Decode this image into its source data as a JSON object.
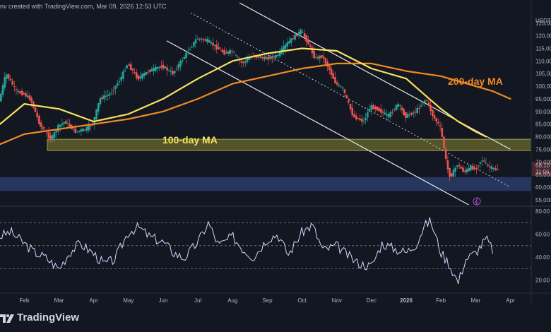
{
  "header": {
    "text": "nv created with TradingView.com, Mar 09, 2026 12:53 UTC"
  },
  "branding": {
    "logo": "TradingView"
  },
  "colors": {
    "background": "#131722",
    "up": "#26a69a",
    "down": "#ef5350",
    "ma100": "#f7e35e",
    "ma200": "#f08a24",
    "rsi": "#d1d9ff",
    "resistance_zone": "#6b6a2e",
    "support_zone": "#2d3f6e"
  },
  "chart_data": [
    {
      "type": "line",
      "title": "",
      "currency_label": "USDT",
      "y_ticks": [
        "125,000",
        "120,000",
        "115,000",
        "110,000",
        "105,000",
        "100,000",
        "95,000",
        "90,000",
        "85,000",
        "80,000",
        "75,000",
        "70,000",
        "65,000",
        "60,000",
        "55,000"
      ],
      "y_tick_values": [
        125000,
        120000,
        115000,
        110000,
        105000,
        100000,
        95000,
        90000,
        85000,
        80000,
        75000,
        70000,
        65000,
        60000,
        55000
      ],
      "ylim": [
        53000,
        128000
      ],
      "x_labels": [
        "Feb",
        "Mar",
        "Apr",
        "May",
        "Jun",
        "Jul",
        "Aug",
        "Sep",
        "Oct",
        "Nov",
        "Dec",
        "2026",
        "Feb",
        "Mar",
        "Apr"
      ],
      "x_label_months": [
        1,
        2,
        3,
        4,
        5,
        6,
        7,
        8,
        9,
        10,
        11,
        12,
        13,
        14,
        15
      ],
      "xlim": [
        0.3,
        15.6
      ],
      "price_labels": {
        "last_price": "68,10",
        "countdown": "11:06"
      },
      "annotations": {
        "ma200_label": "200-day MA",
        "ma100_label": "100-day MA"
      },
      "price": {
        "month": [
          0.3,
          0.5,
          0.8,
          1.0,
          1.2,
          1.5,
          1.8,
          2.0,
          2.2,
          2.5,
          2.8,
          3.0,
          3.2,
          3.5,
          3.8,
          4.0,
          4.3,
          4.6,
          5.0,
          5.3,
          5.6,
          6.0,
          6.3,
          6.5,
          6.8,
          7.0,
          7.3,
          7.6,
          8.0,
          8.3,
          8.6,
          9.0,
          9.2,
          9.4,
          9.6,
          9.8,
          10.0,
          10.2,
          10.5,
          10.8,
          11.0,
          11.2,
          11.5,
          11.8,
          12.0,
          12.3,
          12.6,
          12.8,
          13.0,
          13.1,
          13.2,
          13.3,
          13.5,
          13.7,
          13.9,
          14.0,
          14.2,
          14.4,
          14.6
        ],
        "value": [
          94000,
          105000,
          98000,
          97000,
          95000,
          84000,
          79000,
          84000,
          86000,
          82000,
          83000,
          85000,
          95000,
          97000,
          103000,
          109000,
          103000,
          106000,
          108000,
          105000,
          111000,
          119000,
          118000,
          116000,
          113000,
          114000,
          109000,
          112000,
          111000,
          112000,
          117000,
          122000,
          117000,
          111000,
          112000,
          107000,
          101000,
          99000,
          88000,
          86000,
          92000,
          91000,
          88000,
          93000,
          88000,
          90000,
          95000,
          88000,
          84000,
          77000,
          68000,
          64000,
          69000,
          66000,
          68000,
          67000,
          71000,
          68000,
          67000
        ]
      },
      "ma100": {
        "month": [
          0.3,
          1.0,
          2.0,
          3.0,
          4.0,
          5.0,
          6.0,
          7.0,
          8.0,
          9.0,
          10.0,
          11.0,
          12.0,
          12.5,
          13.0,
          13.5,
          14.0,
          14.3
        ],
        "value": [
          85000,
          93000,
          91000,
          86000,
          89000,
          95000,
          103000,
          110000,
          113000,
          115000,
          114000,
          107000,
          103000,
          97000,
          91000,
          86000,
          82000,
          80000
        ]
      },
      "ma200": {
        "month": [
          0.3,
          1.0,
          2.0,
          3.0,
          4.0,
          5.0,
          6.0,
          7.0,
          8.0,
          9.0,
          10.0,
          11.0,
          12.0,
          13.0,
          14.0,
          14.5,
          15.0
        ],
        "value": [
          77000,
          81000,
          83000,
          85000,
          87000,
          90000,
          95000,
          101000,
          104000,
          107000,
          109000,
          109000,
          106000,
          104000,
          100000,
          98000,
          95000
        ]
      },
      "channel": {
        "upper": [
          [
            7.2,
            133000
          ],
          [
            15.0,
            75000
          ]
        ],
        "lower": [
          [
            5.1,
            118000
          ],
          [
            13.8,
            53000
          ]
        ],
        "midline": [
          [
            5.8,
            129000
          ],
          [
            15.0,
            60000
          ]
        ]
      },
      "zones": {
        "resistance": [
          74500,
          79000
        ],
        "support": [
          58500,
          64000
        ]
      }
    },
    {
      "type": "line",
      "title": "",
      "indicator": "RSI",
      "y_ticks": [
        "80.00",
        "60.00",
        "40.00",
        "20.00"
      ],
      "y_tick_values": [
        80,
        60,
        40,
        20
      ],
      "ylim": [
        10,
        83
      ],
      "levels": [
        70,
        50,
        30
      ],
      "rsi": {
        "month": [
          0.3,
          0.6,
          1.0,
          1.3,
          1.6,
          2.0,
          2.3,
          2.6,
          3.0,
          3.3,
          3.6,
          4.0,
          4.3,
          4.6,
          5.0,
          5.3,
          5.6,
          6.0,
          6.3,
          6.6,
          7.0,
          7.3,
          7.6,
          8.0,
          8.3,
          8.6,
          9.0,
          9.3,
          9.6,
          10.0,
          10.3,
          10.6,
          11.0,
          11.3,
          11.6,
          12.0,
          12.3,
          12.5,
          12.7,
          13.0,
          13.2,
          13.5,
          13.7,
          14.0,
          14.3,
          14.5
        ],
        "value": [
          58,
          62,
          52,
          44,
          40,
          30,
          44,
          52,
          43,
          34,
          38,
          62,
          66,
          58,
          53,
          44,
          39,
          53,
          70,
          50,
          58,
          47,
          40,
          56,
          60,
          42,
          62,
          68,
          46,
          50,
          42,
          35,
          32,
          52,
          48,
          44,
          52,
          66,
          72,
          44,
          36,
          18,
          38,
          44,
          56,
          46
        ]
      }
    }
  ]
}
